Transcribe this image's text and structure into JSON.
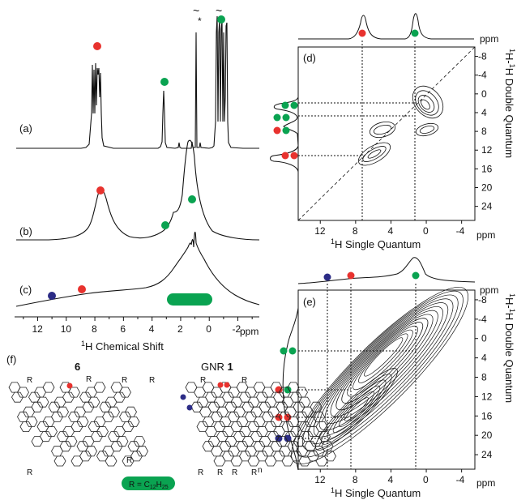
{
  "colors": {
    "red": "#e8322e",
    "green": "#0aa351",
    "blue": "#2c2c86"
  },
  "panels": {
    "a": "(a)",
    "b": "(b)",
    "c": "(c)",
    "d": "(d)",
    "e": "(e)",
    "f": "(f)"
  },
  "spectra_1d": {
    "x_ticks": [
      "12",
      "10",
      "8",
      "6",
      "4",
      "2",
      "0",
      "-2"
    ],
    "unit": "ppm",
    "x_label": "H Chemical Shift",
    "x_label_sup": "1",
    "peak_a_asterisk": "*",
    "peak_a_cut": "~"
  },
  "panel_d": {
    "x_ticks": [
      "12",
      "8",
      "4",
      "0",
      "-4"
    ],
    "x_unit": "ppm",
    "y_ticks": [
      "-8",
      "-4",
      "0",
      "4",
      "8",
      "12",
      "16",
      "20",
      "24"
    ],
    "y_unit": "ppm",
    "x_label_sup": "1",
    "x_label": "H Single Quantum",
    "y_label_sup1": "1",
    "y_label_mid": "H-",
    "y_label_sup2": "1",
    "y_label_end": "H Double Quantum"
  },
  "panel_e": {
    "x_ticks": [
      "12",
      "8",
      "4",
      "0",
      "-4"
    ],
    "x_unit": "ppm",
    "y_ticks": [
      "-8",
      "-4",
      "0",
      "4",
      "8",
      "12",
      "16",
      "20",
      "24"
    ],
    "y_unit": "ppm",
    "x_label_sup": "1",
    "x_label": "H Single Quantum",
    "y_label_sup1": "1",
    "y_label_mid": "H-",
    "y_label_sup2": "1",
    "y_label_end": "H Double Quantum"
  },
  "panel_f": {
    "compound_label": "6",
    "gnr_label": "GNR ",
    "gnr_num": "1",
    "r_label": "R",
    "n_label": "n",
    "legend_text": "R = C",
    "legend_sub1": "12",
    "legend_mid": "H",
    "legend_sub2": "25"
  }
}
